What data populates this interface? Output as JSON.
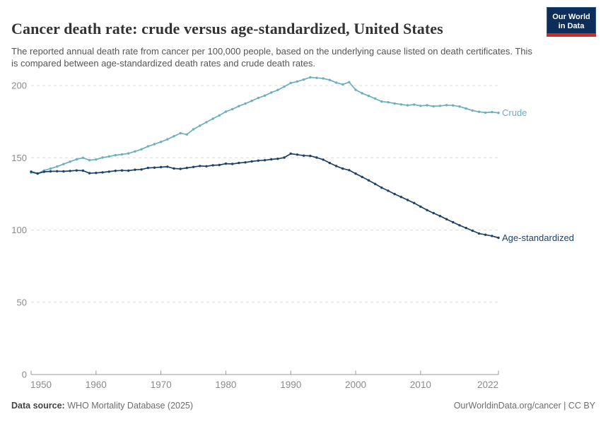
{
  "header": {
    "title": "Cancer death rate: crude versus age-standardized, United States",
    "subtitle": "The reported annual death rate from cancer per 100,000 people, based on the underlying cause listed on death certificates. This is compared between age-standardized death rates and crude death rates."
  },
  "logo": {
    "line1": "Our World",
    "line2": "in Data",
    "background": "#0D2D5A",
    "bar_color": "#CB2D21"
  },
  "footer": {
    "data_source_label": "Data source:",
    "data_source_value": " WHO Mortality Database (2025)",
    "link_text": "OurWorldinData.org/cancer | CC BY"
  },
  "chart_data": {
    "type": "line",
    "title": "Cancer death rate: crude versus age-standardized, United States",
    "xlabel": "",
    "ylabel": "",
    "xlim": [
      1950,
      2022
    ],
    "ylim": [
      0,
      210
    ],
    "yticks": [
      0,
      50,
      100,
      150,
      200
    ],
    "xticks": [
      1950,
      1960,
      1970,
      1980,
      1990,
      2000,
      2010,
      2022
    ],
    "grid": "horizontal-dashed",
    "legend_position": "right-end-labels",
    "colors": {
      "grid": "#DBDBDB",
      "axis": "#999999",
      "tick": "#8B8B8B"
    },
    "years": [
      1950,
      1951,
      1952,
      1953,
      1954,
      1955,
      1956,
      1957,
      1958,
      1959,
      1960,
      1961,
      1962,
      1963,
      1964,
      1965,
      1966,
      1967,
      1968,
      1969,
      1970,
      1971,
      1972,
      1973,
      1974,
      1975,
      1976,
      1977,
      1978,
      1979,
      1980,
      1981,
      1982,
      1983,
      1984,
      1985,
      1986,
      1987,
      1988,
      1989,
      1990,
      1991,
      1992,
      1993,
      1994,
      1995,
      1996,
      1997,
      1998,
      1999,
      2000,
      2001,
      2002,
      2003,
      2004,
      2005,
      2006,
      2007,
      2008,
      2009,
      2010,
      2011,
      2012,
      2013,
      2014,
      2015,
      2016,
      2017,
      2018,
      2019,
      2020,
      2021,
      2022
    ],
    "series": [
      {
        "name": "Crude",
        "color": "#6CAFBD",
        "values": [
          139.8,
          139.0,
          141.2,
          142.5,
          143.9,
          145.6,
          147.3,
          148.9,
          150.0,
          148.3,
          148.8,
          150.1,
          150.9,
          151.8,
          152.3,
          153.0,
          154.4,
          155.9,
          157.9,
          159.4,
          161.0,
          162.8,
          164.9,
          167.0,
          166.1,
          169.7,
          172.2,
          174.6,
          177.0,
          179.3,
          181.9,
          183.6,
          185.7,
          187.5,
          189.4,
          191.4,
          193.0,
          195.1,
          196.9,
          199.2,
          201.7,
          202.8,
          204.1,
          205.6,
          205.3,
          204.9,
          203.8,
          202.0,
          200.8,
          202.3,
          197.0,
          194.6,
          192.8,
          190.9,
          188.9,
          188.4,
          187.6,
          186.9,
          186.3,
          186.8,
          185.9,
          186.3,
          185.6,
          185.9,
          186.4,
          186.2,
          185.5,
          184.1,
          182.7,
          181.8,
          181.2,
          181.6,
          181.1
        ]
      },
      {
        "name": "Age-standardized",
        "color": "#1D4268",
        "values": [
          140.4,
          139.1,
          140.3,
          140.6,
          140.7,
          140.6,
          140.9,
          141.2,
          141.1,
          139.3,
          139.5,
          139.9,
          140.4,
          141.0,
          141.2,
          141.1,
          141.7,
          141.9,
          143.0,
          143.2,
          143.5,
          143.8,
          142.6,
          142.3,
          143.0,
          143.6,
          144.3,
          144.1,
          144.8,
          145.0,
          145.9,
          145.7,
          146.4,
          146.8,
          147.5,
          148.0,
          148.3,
          148.9,
          149.3,
          150.1,
          152.8,
          152.2,
          151.5,
          151.3,
          150.1,
          148.7,
          146.4,
          144.3,
          142.5,
          141.4,
          139.0,
          136.7,
          134.4,
          131.9,
          129.3,
          127.2,
          124.9,
          122.9,
          120.8,
          118.7,
          116.2,
          113.8,
          111.7,
          109.7,
          107.5,
          105.4,
          103.3,
          101.4,
          99.5,
          97.6,
          96.7,
          95.9,
          94.6
        ]
      }
    ]
  }
}
